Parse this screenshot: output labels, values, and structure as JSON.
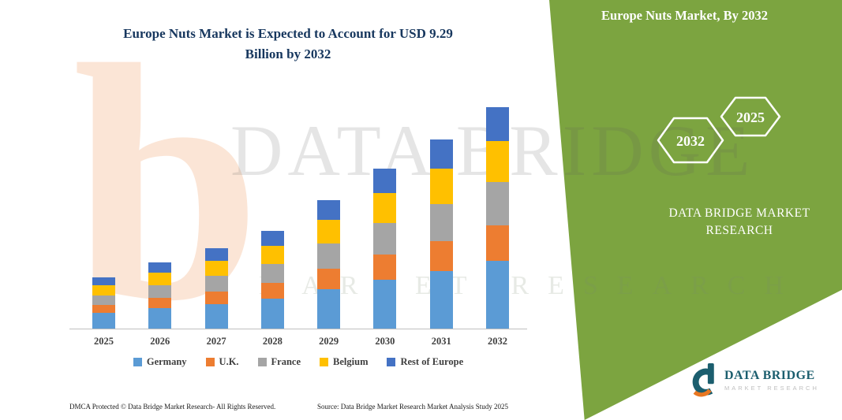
{
  "panel": {
    "title": "Europe Nuts Market, By 2032",
    "badge_back": "2032",
    "badge_front": "2025",
    "brand_line1": "DATA BRIDGE MARKET",
    "brand_line2": "RESEARCH",
    "color": "#7CA440"
  },
  "chart_title": {
    "line1": "Europe Nuts Market is Expected to Account for USD 9.29",
    "line2": "Billion by 2032",
    "color": "#17375E"
  },
  "chart_data": {
    "type": "bar",
    "stacked": true,
    "title": "Europe Nuts Market is Expected to Account for USD 9.29 Billion by 2032",
    "unit": "USD Billion",
    "categories": [
      "2025",
      "2026",
      "2027",
      "2028",
      "2029",
      "2030",
      "2031",
      "2032"
    ],
    "series": [
      {
        "name": "Germany",
        "color": "#5B9BD5",
        "values": [
          0.66,
          0.86,
          1.02,
          1.26,
          1.65,
          2.05,
          2.41,
          2.84
        ]
      },
      {
        "name": "U.K.",
        "color": "#ED7D31",
        "values": [
          0.33,
          0.43,
          0.53,
          0.66,
          0.86,
          1.06,
          1.26,
          1.49
        ]
      },
      {
        "name": "France",
        "color": "#A5A5A5",
        "values": [
          0.4,
          0.53,
          0.66,
          0.79,
          1.06,
          1.32,
          1.55,
          1.82
        ]
      },
      {
        "name": "Belgium",
        "color": "#FFC000",
        "values": [
          0.43,
          0.53,
          0.63,
          0.76,
          0.99,
          1.26,
          1.49,
          1.72
        ]
      },
      {
        "name": "Rest of Europe",
        "color": "#4472C4",
        "values": [
          0.33,
          0.43,
          0.53,
          0.63,
          0.83,
          1.02,
          1.22,
          1.42
        ]
      }
    ],
    "totals": [
      2.15,
      2.78,
      3.37,
      4.1,
      5.39,
      6.71,
      7.93,
      9.29
    ],
    "ylim": [
      0,
      9.29
    ],
    "grid": false,
    "legend_position": "bottom"
  },
  "watermark": {
    "letter": "b",
    "line1": "DATA BRIDGE",
    "line2": "MARKET RESEARCH"
  },
  "footer": {
    "dmca": "DMCA Protected © Data Bridge Market Research-  All Rights Reserved.",
    "source": "Source: Data Bridge Market Research  Market Analysis Study 2025"
  },
  "logo": {
    "name": "DATA BRIDGE",
    "tagline": "MARKET RESEARCH",
    "teal": "#1B5E6E",
    "orange": "#E87722"
  }
}
